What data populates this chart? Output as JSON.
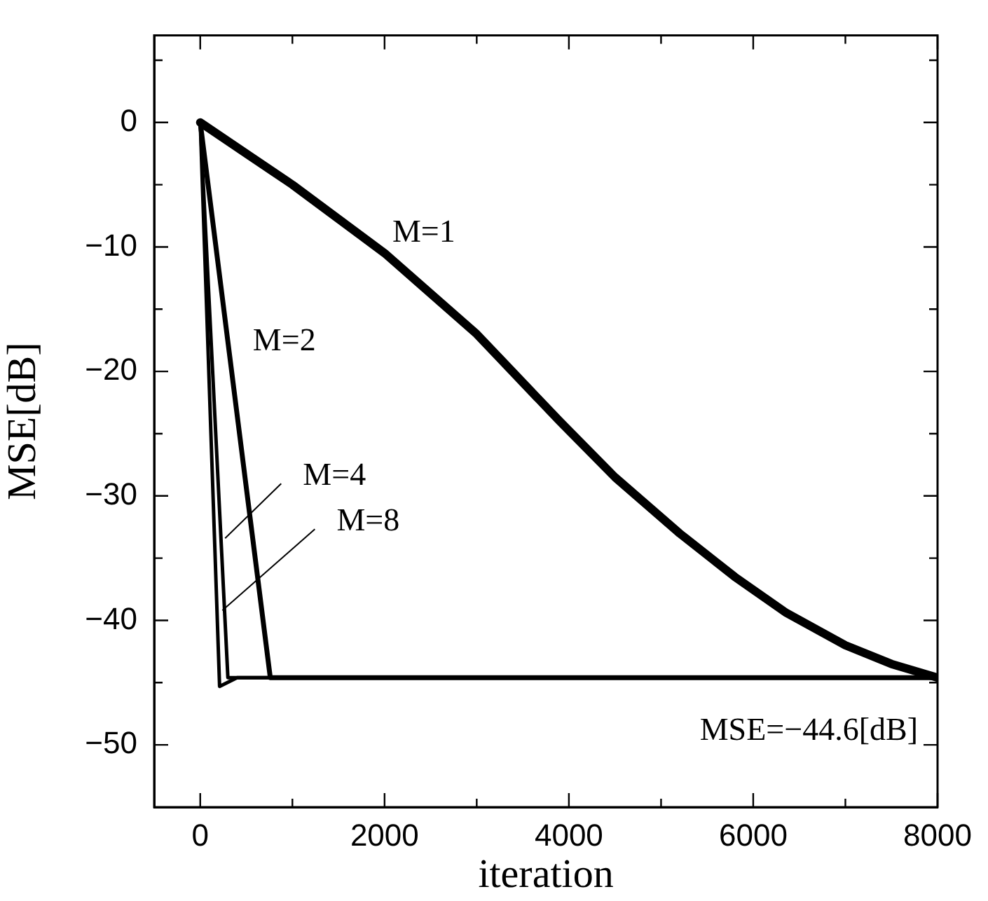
{
  "chart_data": {
    "type": "line",
    "xlabel": "iteration",
    "ylabel": "MSE[dB]",
    "xlim": [
      -500,
      8000
    ],
    "ylim": [
      -55,
      7
    ],
    "xticks": [
      0,
      {
        "value": 1000,
        "label": null
      },
      2000,
      {
        "value": 3000,
        "label": null
      },
      4000,
      {
        "value": 5000,
        "label": null
      },
      6000,
      {
        "value": 7000,
        "label": null
      },
      8000
    ],
    "yticks": [
      {
        "value": 5,
        "label": null
      },
      0,
      {
        "value": -5,
        "label": null
      },
      -10,
      {
        "value": -15,
        "label": null
      },
      -20,
      {
        "value": -25,
        "label": null
      },
      -30,
      {
        "value": -35,
        "label": null
      },
      -40,
      {
        "value": -45,
        "label": null
      },
      -50
    ],
    "grid": false,
    "legend": false,
    "marker": "none",
    "line_style": "solid",
    "series": [
      {
        "name": "M=1",
        "color": "#000000",
        "x": [
          0,
          500,
          1000,
          2000,
          3000,
          3900,
          4500,
          5200,
          5800,
          6360,
          7000,
          7500,
          8000
        ],
        "values": [
          0,
          -2.5,
          -5,
          -10.5,
          -17,
          -24,
          -28.5,
          -33,
          -36.5,
          -39.4,
          -42,
          -43.5,
          -44.6
        ]
      },
      {
        "name": "M=2",
        "color": "#000000",
        "x": [
          0,
          760,
          1000,
          8000
        ],
        "values": [
          0,
          -44.6,
          -44.6,
          -44.6
        ]
      },
      {
        "color": "#000000",
        "x": [
          0,
          300,
          500,
          8000
        ],
        "values": [
          0,
          -44.6,
          -44.6,
          -44.6
        ]
      },
      {
        "color": "#000000",
        "x": [
          0,
          210,
          400,
          8000
        ],
        "values": [
          0,
          -45.3,
          -44.6,
          -44.6
        ]
      }
    ],
    "annotations": [
      {
        "text": "M=4",
        "x": 270,
        "y": -33.4
      },
      {
        "text": "M=8",
        "x": 240,
        "y": -39.2
      },
      "MSE=−44.6[dB]"
    ]
  }
}
